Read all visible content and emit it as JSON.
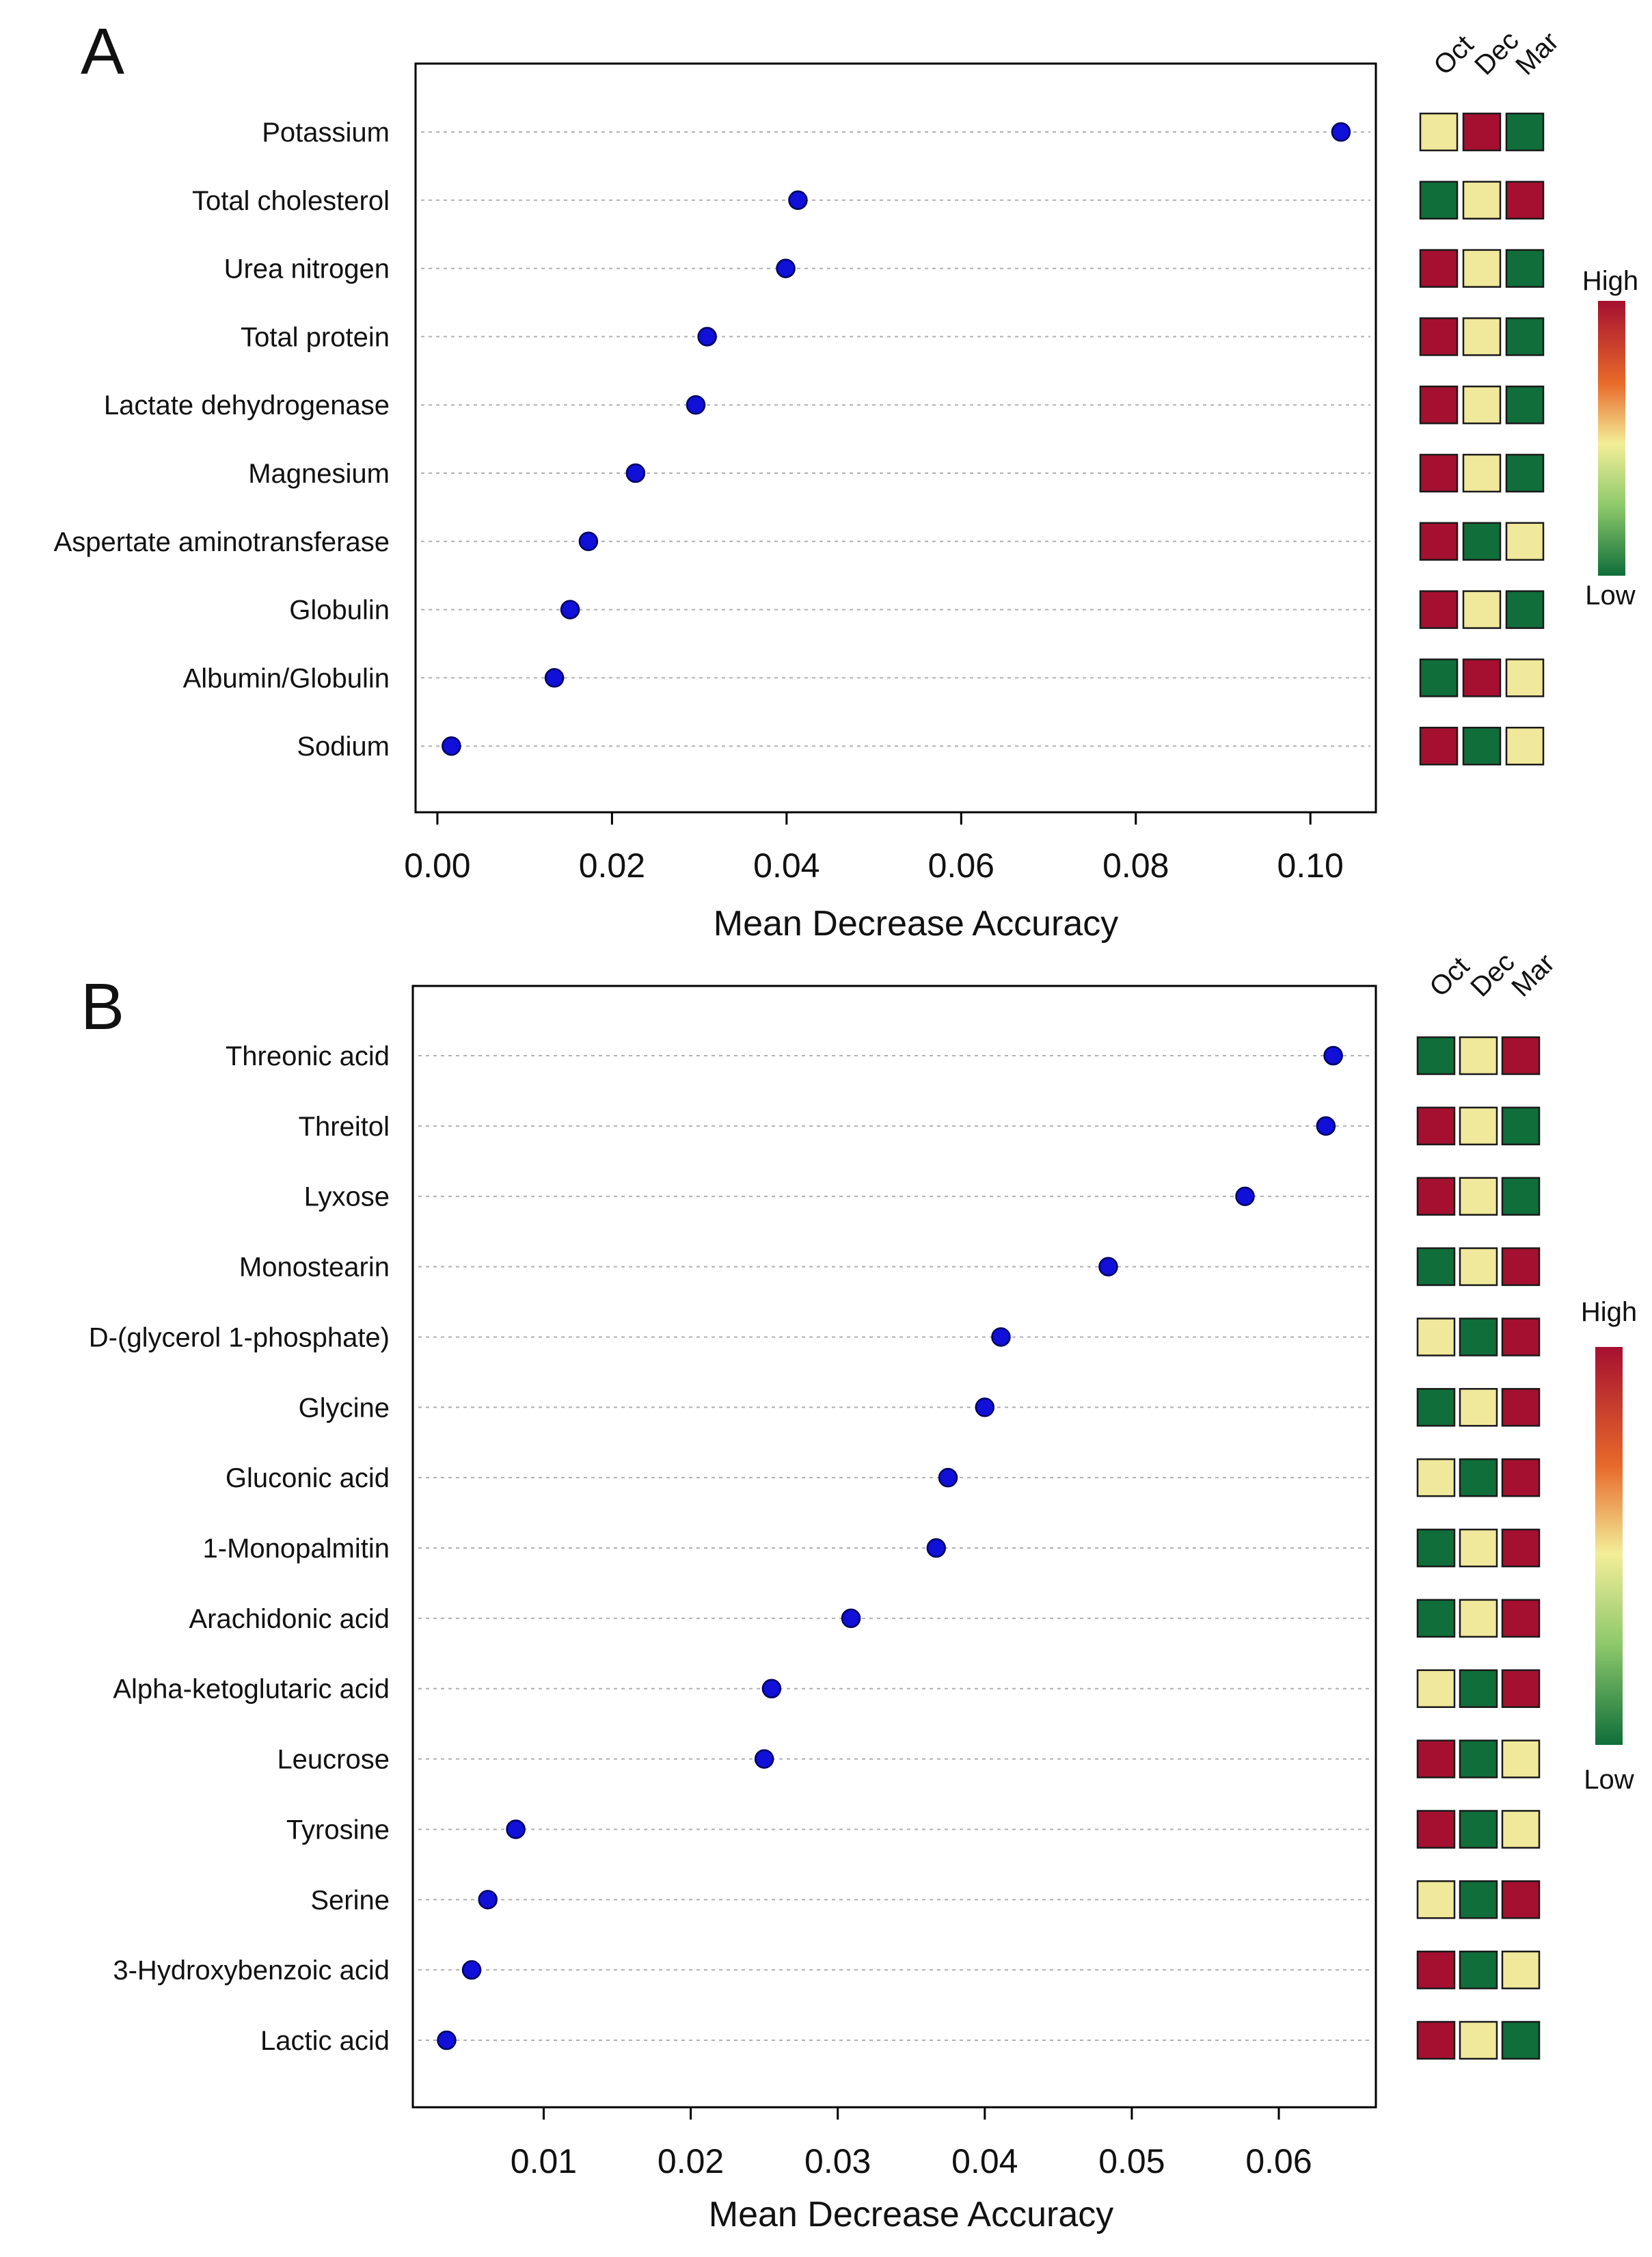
{
  "colors": {
    "point": "#1010d8",
    "point_stroke": "#000060",
    "high": "#a51030",
    "mid": "#f0e89a",
    "low": "#0f6e3a",
    "grid": "#b0b0b0"
  },
  "chart_data": [
    {
      "type": "scatter",
      "panel": "A",
      "xlabel": "Mean  Decrease  Accuracy",
      "xlim": [
        -0.0025,
        0.1075
      ],
      "xticks": [
        0.0,
        0.02,
        0.04,
        0.06,
        0.08,
        0.1
      ],
      "xtick_labels": [
        "0.00",
        "0.02",
        "0.04",
        "0.06",
        "0.08",
        "0.10"
      ],
      "heatmap_columns": [
        "Oct",
        "Dec",
        "Mar"
      ],
      "legend": {
        "high": "High",
        "low": "Low"
      },
      "items": [
        {
          "label": "Potassium",
          "value": 0.1035,
          "levels": [
            "mid",
            "high",
            "low"
          ]
        },
        {
          "label": "Total cholesterol",
          "value": 0.0413,
          "levels": [
            "low",
            "mid",
            "high"
          ]
        },
        {
          "label": "Urea nitrogen",
          "value": 0.0399,
          "levels": [
            "high",
            "mid",
            "low"
          ]
        },
        {
          "label": "Total protein",
          "value": 0.0309,
          "levels": [
            "high",
            "mid",
            "low"
          ]
        },
        {
          "label": "Lactate dehydrogenase",
          "value": 0.0296,
          "levels": [
            "high",
            "mid",
            "low"
          ]
        },
        {
          "label": "Magnesium",
          "value": 0.0227,
          "levels": [
            "high",
            "mid",
            "low"
          ]
        },
        {
          "label": "Aspertate aminotransferase",
          "value": 0.0173,
          "levels": [
            "high",
            "low",
            "mid"
          ]
        },
        {
          "label": "Globulin",
          "value": 0.0152,
          "levels": [
            "high",
            "mid",
            "low"
          ]
        },
        {
          "label": "Albumin/Globulin",
          "value": 0.0134,
          "levels": [
            "low",
            "high",
            "mid"
          ]
        },
        {
          "label": "Sodium",
          "value": 0.0016,
          "levels": [
            "high",
            "low",
            "mid"
          ]
        }
      ]
    },
    {
      "type": "scatter",
      "panel": "B",
      "xlabel": "Mean  Decrease  Accuracy",
      "xlim": [
        0.0011,
        0.0666
      ],
      "xticks": [
        0.01,
        0.02,
        0.03,
        0.04,
        0.05,
        0.06
      ],
      "xtick_labels": [
        "0.01",
        "0.02",
        "0.03",
        "0.04",
        "0.05",
        "0.06"
      ],
      "heatmap_columns": [
        "Oct",
        "Dec",
        "Mar"
      ],
      "legend": {
        "high": "High",
        "low": "Low"
      },
      "items": [
        {
          "label": "Threonic acid",
          "value": 0.0637,
          "levels": [
            "low",
            "mid",
            "high"
          ]
        },
        {
          "label": "Threitol",
          "value": 0.0632,
          "levels": [
            "high",
            "mid",
            "low"
          ]
        },
        {
          "label": "Lyxose",
          "value": 0.0577,
          "levels": [
            "high",
            "mid",
            "low"
          ]
        },
        {
          "label": "Monostearin",
          "value": 0.0484,
          "levels": [
            "low",
            "mid",
            "high"
          ]
        },
        {
          "label": "D-(glycerol 1-phosphate)",
          "value": 0.0411,
          "levels": [
            "mid",
            "low",
            "high"
          ]
        },
        {
          "label": "Glycine",
          "value": 0.04,
          "levels": [
            "low",
            "mid",
            "high"
          ]
        },
        {
          "label": "Gluconic acid",
          "value": 0.0375,
          "levels": [
            "mid",
            "low",
            "high"
          ]
        },
        {
          "label": "1-Monopalmitin",
          "value": 0.0367,
          "levels": [
            "low",
            "mid",
            "high"
          ]
        },
        {
          "label": "Arachidonic acid",
          "value": 0.0309,
          "levels": [
            "low",
            "mid",
            "high"
          ]
        },
        {
          "label": "Alpha-ketoglutaric acid",
          "value": 0.0255,
          "levels": [
            "mid",
            "low",
            "high"
          ]
        },
        {
          "label": "Leucrose",
          "value": 0.025,
          "levels": [
            "high",
            "low",
            "mid"
          ]
        },
        {
          "label": "Tyrosine",
          "value": 0.0081,
          "levels": [
            "high",
            "low",
            "mid"
          ]
        },
        {
          "label": "Serine",
          "value": 0.0062,
          "levels": [
            "mid",
            "low",
            "high"
          ]
        },
        {
          "label": "3-Hydroxybenzoic acid",
          "value": 0.0051,
          "levels": [
            "high",
            "low",
            "mid"
          ]
        },
        {
          "label": "Lactic acid",
          "value": 0.0034,
          "levels": [
            "high",
            "mid",
            "low"
          ]
        }
      ]
    }
  ]
}
